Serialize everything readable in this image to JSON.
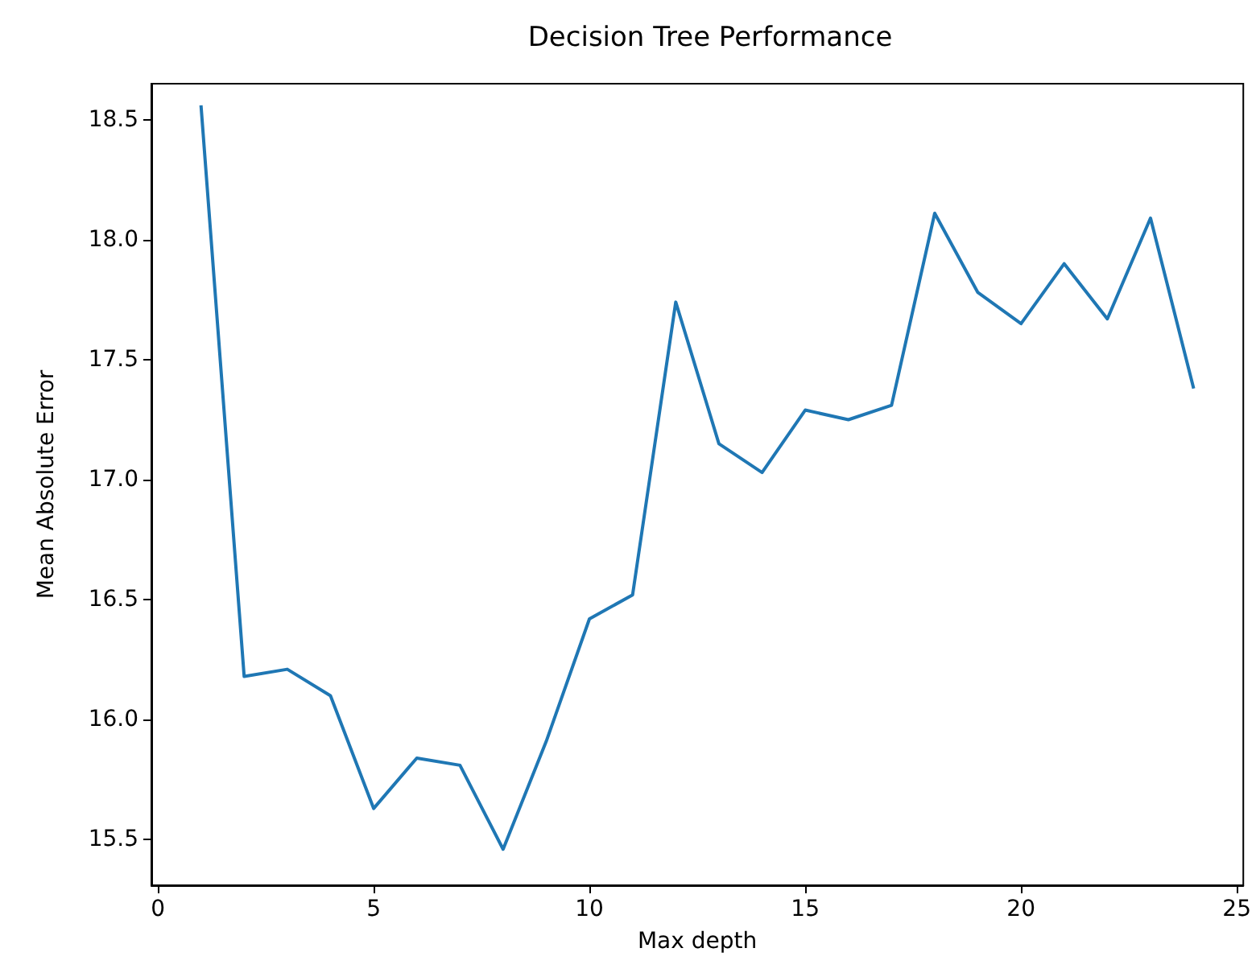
{
  "chart_data": {
    "type": "line",
    "title": "Decision Tree Performance",
    "xlabel": "Max depth",
    "ylabel": "Mean Absolute Error",
    "x": [
      1,
      2,
      3,
      4,
      5,
      6,
      7,
      8,
      9,
      10,
      11,
      12,
      13,
      14,
      15,
      16,
      17,
      18,
      19,
      20,
      21,
      22,
      23,
      24
    ],
    "series": [
      {
        "color": "#1f77b4",
        "values": [
          18.56,
          16.18,
          16.21,
          16.1,
          15.63,
          15.84,
          15.81,
          15.46,
          15.91,
          16.42,
          16.52,
          17.74,
          17.15,
          17.03,
          17.29,
          17.25,
          17.31,
          18.11,
          17.78,
          17.65,
          17.9,
          17.67,
          18.09,
          17.38
        ]
      }
    ],
    "xlim": [
      -0.15,
      25.15
    ],
    "ylim": [
      15.31,
      18.65
    ],
    "xticks": [
      0,
      5,
      10,
      15,
      20,
      25
    ],
    "yticks": [
      15.5,
      {
        "value": 16,
        "label": "16.0"
      },
      16.5,
      {
        "value": 17,
        "label": "17.0"
      },
      17.5,
      {
        "value": 18,
        "label": "18.0"
      },
      18.5
    ],
    "grid": false,
    "marker": "none",
    "line_style": "solid"
  }
}
